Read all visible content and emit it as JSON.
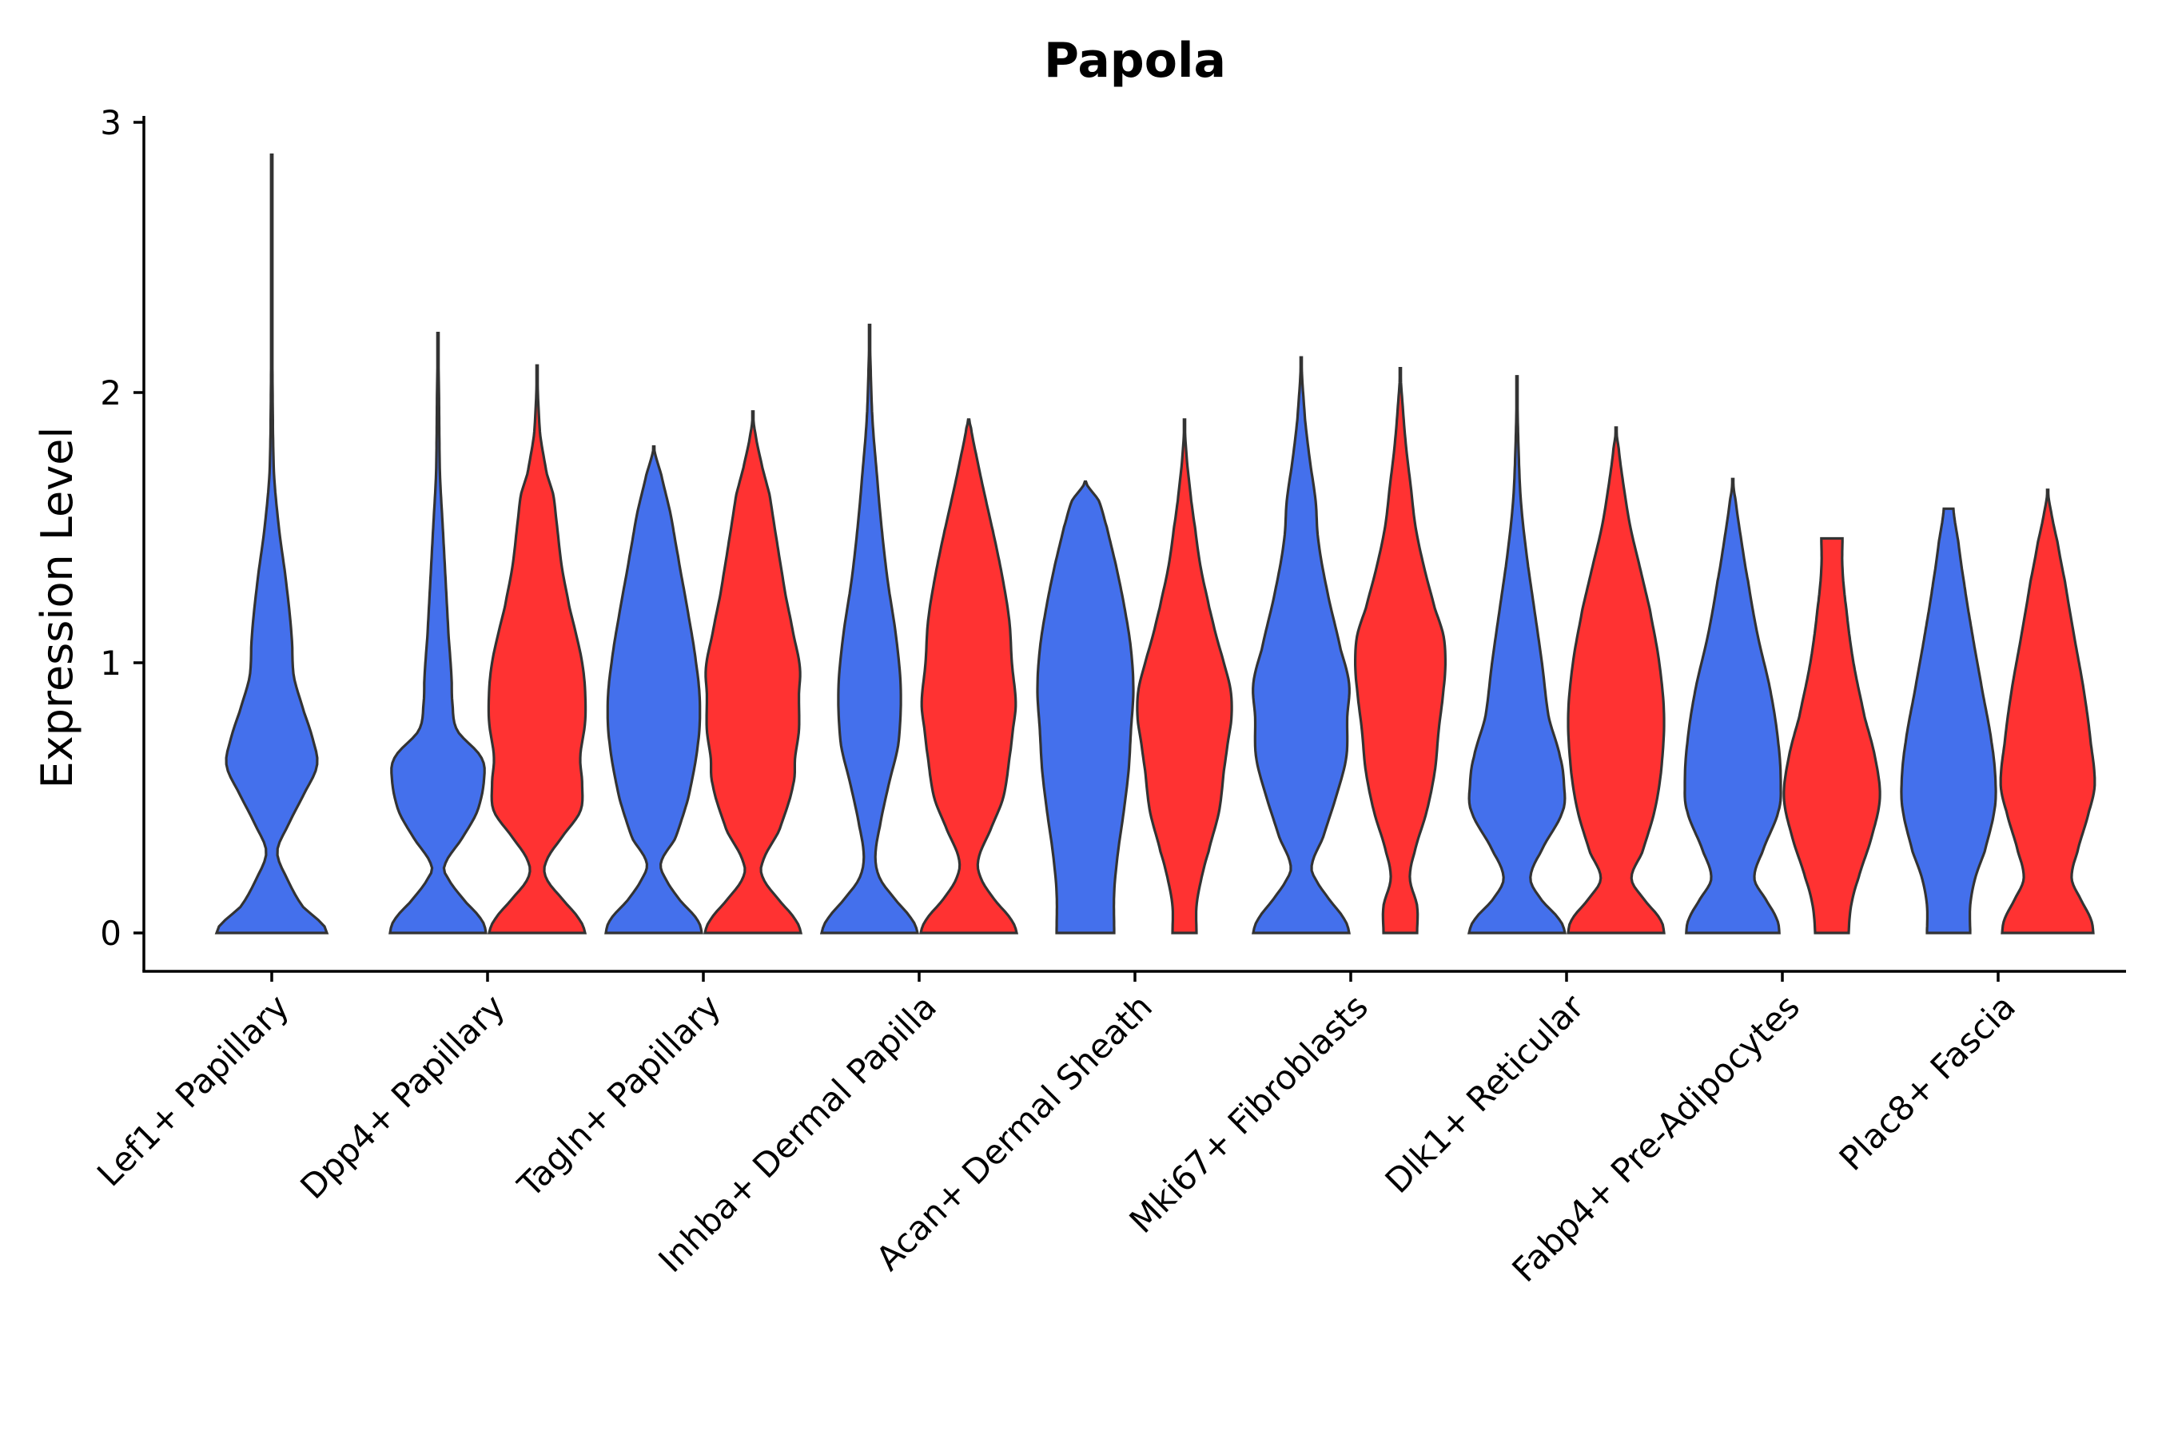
{
  "chart_data": {
    "type": "violin",
    "title": "Papola",
    "xlabel": "",
    "ylabel": "Expression Level",
    "ylim": [
      -0.15,
      3.05
    ],
    "yticks": [
      0,
      1,
      2,
      3
    ],
    "grid": false,
    "legend": "none",
    "colors": {
      "group_1": "#4470EC",
      "group_2": "#FF3232",
      "outline": "#333333"
    },
    "categories": [
      "Lef1+ Papillary",
      "Dpp4+ Papillary",
      "Tagln+ Papillary",
      "Inhba+ Dermal Papilla",
      "Acan+ Dermal Sheath",
      "Mki67+ Fibroblasts",
      "Dlk1+ Reticular",
      "Fabp4+ Pre-Adipocytes",
      "Plac8+ Fascia"
    ],
    "violins": [
      {
        "category": "Lef1+ Papillary",
        "group": 1,
        "ymax": 2.88,
        "profile": [
          [
            0,
            1
          ],
          [
            0.03,
            0.92
          ],
          [
            0.1,
            0.55
          ],
          [
            0.2,
            0.28
          ],
          [
            0.3,
            0.1
          ],
          [
            0.4,
            0.3
          ],
          [
            0.5,
            0.55
          ],
          [
            0.62,
            0.82
          ],
          [
            0.72,
            0.74
          ],
          [
            0.82,
            0.58
          ],
          [
            0.95,
            0.4
          ],
          [
            1.1,
            0.36
          ],
          [
            1.3,
            0.26
          ],
          [
            1.5,
            0.13
          ],
          [
            1.7,
            0.04
          ],
          [
            2.0,
            0.015
          ],
          [
            2.3,
            0.01
          ],
          [
            2.88,
            0.0
          ]
        ]
      },
      {
        "category": "Dpp4+ Papillary",
        "group": 1,
        "ymax": 2.22,
        "profile": [
          [
            0,
            1
          ],
          [
            0.05,
            0.9
          ],
          [
            0.12,
            0.55
          ],
          [
            0.2,
            0.22
          ],
          [
            0.25,
            0.14
          ],
          [
            0.35,
            0.5
          ],
          [
            0.45,
            0.82
          ],
          [
            0.57,
            0.96
          ],
          [
            0.65,
            0.9
          ],
          [
            0.75,
            0.4
          ],
          [
            0.85,
            0.3
          ],
          [
            0.95,
            0.28
          ],
          [
            1.1,
            0.22
          ],
          [
            1.3,
            0.16
          ],
          [
            1.5,
            0.1
          ],
          [
            1.7,
            0.04
          ],
          [
            2.0,
            0.02
          ],
          [
            2.22,
            0.0
          ]
        ]
      },
      {
        "category": "Dpp4+ Papillary",
        "group": 2,
        "ymax": 2.1,
        "profile": [
          [
            0,
            1
          ],
          [
            0.05,
            0.88
          ],
          [
            0.12,
            0.55
          ],
          [
            0.2,
            0.2
          ],
          [
            0.26,
            0.18
          ],
          [
            0.35,
            0.5
          ],
          [
            0.45,
            0.9
          ],
          [
            0.55,
            0.94
          ],
          [
            0.65,
            0.9
          ],
          [
            0.78,
            1.0
          ],
          [
            0.9,
            1.0
          ],
          [
            1.0,
            0.94
          ],
          [
            1.1,
            0.82
          ],
          [
            1.2,
            0.68
          ],
          [
            1.35,
            0.52
          ],
          [
            1.5,
            0.42
          ],
          [
            1.62,
            0.34
          ],
          [
            1.7,
            0.2
          ],
          [
            1.85,
            0.06
          ],
          [
            2.1,
            0.0
          ]
        ]
      },
      {
        "category": "Tagln+ Papillary",
        "group": 1,
        "ymax": 1.8,
        "profile": [
          [
            0,
            1
          ],
          [
            0.05,
            0.9
          ],
          [
            0.12,
            0.55
          ],
          [
            0.2,
            0.25
          ],
          [
            0.26,
            0.15
          ],
          [
            0.35,
            0.45
          ],
          [
            0.5,
            0.72
          ],
          [
            0.7,
            0.92
          ],
          [
            0.85,
            0.96
          ],
          [
            1.0,
            0.88
          ],
          [
            1.2,
            0.7
          ],
          [
            1.4,
            0.5
          ],
          [
            1.55,
            0.35
          ],
          [
            1.7,
            0.15
          ],
          [
            1.8,
            0.0
          ]
        ]
      },
      {
        "category": "Tagln+ Papillary",
        "group": 2,
        "ymax": 1.93,
        "profile": [
          [
            0,
            1
          ],
          [
            0.05,
            0.88
          ],
          [
            0.12,
            0.55
          ],
          [
            0.2,
            0.22
          ],
          [
            0.26,
            0.2
          ],
          [
            0.38,
            0.55
          ],
          [
            0.55,
            0.84
          ],
          [
            0.65,
            0.88
          ],
          [
            0.75,
            0.96
          ],
          [
            0.88,
            0.96
          ],
          [
            0.98,
            0.98
          ],
          [
            1.1,
            0.85
          ],
          [
            1.25,
            0.68
          ],
          [
            1.45,
            0.5
          ],
          [
            1.62,
            0.35
          ],
          [
            1.72,
            0.2
          ],
          [
            1.85,
            0.05
          ],
          [
            1.93,
            0.0
          ]
        ]
      },
      {
        "category": "Inhba+ Dermal Papilla",
        "group": 1,
        "ymax": 2.25,
        "profile": [
          [
            0,
            1
          ],
          [
            0.05,
            0.88
          ],
          [
            0.12,
            0.55
          ],
          [
            0.2,
            0.22
          ],
          [
            0.28,
            0.12
          ],
          [
            0.4,
            0.22
          ],
          [
            0.55,
            0.4
          ],
          [
            0.7,
            0.6
          ],
          [
            0.9,
            0.65
          ],
          [
            1.1,
            0.55
          ],
          [
            1.3,
            0.38
          ],
          [
            1.5,
            0.25
          ],
          [
            1.7,
            0.15
          ],
          [
            1.9,
            0.06
          ],
          [
            2.1,
            0.02
          ],
          [
            2.25,
            0.0
          ]
        ]
      },
      {
        "category": "Inhba+ Dermal Papilla",
        "group": 2,
        "ymax": 1.9,
        "profile": [
          [
            0,
            1
          ],
          [
            0.05,
            0.88
          ],
          [
            0.12,
            0.55
          ],
          [
            0.2,
            0.26
          ],
          [
            0.27,
            0.2
          ],
          [
            0.38,
            0.45
          ],
          [
            0.5,
            0.72
          ],
          [
            0.65,
            0.85
          ],
          [
            0.75,
            0.92
          ],
          [
            0.85,
            0.98
          ],
          [
            1.0,
            0.9
          ],
          [
            1.15,
            0.85
          ],
          [
            1.3,
            0.72
          ],
          [
            1.45,
            0.55
          ],
          [
            1.6,
            0.36
          ],
          [
            1.75,
            0.18
          ],
          [
            1.88,
            0.04
          ],
          [
            1.9,
            0.0
          ]
        ]
      },
      {
        "category": "Acan+ Dermal Sheath",
        "group": 1,
        "ymax": 1.67,
        "profile": [
          [
            0,
            0.6
          ],
          [
            0.15,
            0.6
          ],
          [
            0.3,
            0.68
          ],
          [
            0.45,
            0.8
          ],
          [
            0.6,
            0.9
          ],
          [
            0.75,
            0.95
          ],
          [
            0.9,
            1.0
          ],
          [
            1.05,
            0.95
          ],
          [
            1.2,
            0.82
          ],
          [
            1.35,
            0.65
          ],
          [
            1.5,
            0.45
          ],
          [
            1.6,
            0.28
          ],
          [
            1.67,
            0.0
          ]
        ]
      },
      {
        "category": "Acan+ Dermal Sheath",
        "group": 2,
        "ymax": 1.9,
        "profile": [
          [
            0,
            0.25
          ],
          [
            0.1,
            0.25
          ],
          [
            0.2,
            0.35
          ],
          [
            0.3,
            0.5
          ],
          [
            0.45,
            0.72
          ],
          [
            0.6,
            0.82
          ],
          [
            0.7,
            0.9
          ],
          [
            0.8,
            0.98
          ],
          [
            0.9,
            0.96
          ],
          [
            1.0,
            0.82
          ],
          [
            1.1,
            0.66
          ],
          [
            1.2,
            0.52
          ],
          [
            1.35,
            0.34
          ],
          [
            1.5,
            0.22
          ],
          [
            1.6,
            0.14
          ],
          [
            1.75,
            0.05
          ],
          [
            1.9,
            0.0
          ]
        ]
      },
      {
        "category": "Mki67+ Fibroblasts",
        "group": 1,
        "ymax": 2.13,
        "profile": [
          [
            0,
            1
          ],
          [
            0.05,
            0.9
          ],
          [
            0.12,
            0.6
          ],
          [
            0.2,
            0.3
          ],
          [
            0.25,
            0.22
          ],
          [
            0.35,
            0.45
          ],
          [
            0.5,
            0.72
          ],
          [
            0.65,
            0.94
          ],
          [
            0.8,
            0.96
          ],
          [
            0.92,
            1.0
          ],
          [
            1.05,
            0.82
          ],
          [
            1.25,
            0.56
          ],
          [
            1.45,
            0.36
          ],
          [
            1.6,
            0.3
          ],
          [
            1.75,
            0.18
          ],
          [
            1.9,
            0.08
          ],
          [
            2.13,
            0.0
          ]
        ]
      },
      {
        "category": "Mki67+ Fibroblasts",
        "group": 2,
        "ymax": 2.09,
        "profile": [
          [
            0,
            0.35
          ],
          [
            0.1,
            0.35
          ],
          [
            0.2,
            0.2
          ],
          [
            0.3,
            0.3
          ],
          [
            0.45,
            0.55
          ],
          [
            0.6,
            0.72
          ],
          [
            0.75,
            0.8
          ],
          [
            0.9,
            0.9
          ],
          [
            1.0,
            0.94
          ],
          [
            1.1,
            0.9
          ],
          [
            1.2,
            0.72
          ],
          [
            1.35,
            0.5
          ],
          [
            1.5,
            0.32
          ],
          [
            1.65,
            0.22
          ],
          [
            1.8,
            0.12
          ],
          [
            1.95,
            0.05
          ],
          [
            2.09,
            0.0
          ]
        ]
      },
      {
        "category": "Dlk1+ Reticular",
        "group": 1,
        "ymax": 2.06,
        "profile": [
          [
            0,
            1
          ],
          [
            0.05,
            0.88
          ],
          [
            0.12,
            0.52
          ],
          [
            0.2,
            0.28
          ],
          [
            0.3,
            0.5
          ],
          [
            0.45,
            0.95
          ],
          [
            0.55,
            0.98
          ],
          [
            0.65,
            0.9
          ],
          [
            0.8,
            0.66
          ],
          [
            1.0,
            0.52
          ],
          [
            1.2,
            0.36
          ],
          [
            1.4,
            0.2
          ],
          [
            1.6,
            0.08
          ],
          [
            1.8,
            0.03
          ],
          [
            2.06,
            0.0
          ]
        ]
      },
      {
        "category": "Dlk1+ Reticular",
        "group": 2,
        "ymax": 1.87,
        "profile": [
          [
            0,
            1
          ],
          [
            0.05,
            0.92
          ],
          [
            0.12,
            0.6
          ],
          [
            0.2,
            0.32
          ],
          [
            0.3,
            0.55
          ],
          [
            0.45,
            0.8
          ],
          [
            0.6,
            0.94
          ],
          [
            0.8,
            1.0
          ],
          [
            1.0,
            0.9
          ],
          [
            1.2,
            0.7
          ],
          [
            1.35,
            0.5
          ],
          [
            1.5,
            0.3
          ],
          [
            1.65,
            0.16
          ],
          [
            1.8,
            0.05
          ],
          [
            1.87,
            0.0
          ]
        ]
      },
      {
        "category": "Fabp4+ Pre-Adipocytes",
        "group": 1,
        "ymax": 1.68,
        "profile": [
          [
            0,
            0.97
          ],
          [
            0.05,
            0.92
          ],
          [
            0.12,
            0.7
          ],
          [
            0.2,
            0.45
          ],
          [
            0.3,
            0.62
          ],
          [
            0.45,
            0.95
          ],
          [
            0.55,
            1.0
          ],
          [
            0.7,
            0.95
          ],
          [
            0.9,
            0.78
          ],
          [
            1.1,
            0.52
          ],
          [
            1.3,
            0.32
          ],
          [
            1.45,
            0.18
          ],
          [
            1.6,
            0.06
          ],
          [
            1.68,
            0.0
          ]
        ]
      },
      {
        "category": "Fabp4+ Pre-Adipocytes",
        "group": 2,
        "ymax": 1.46,
        "profile": [
          [
            0,
            0.35
          ],
          [
            0.1,
            0.4
          ],
          [
            0.2,
            0.55
          ],
          [
            0.35,
            0.82
          ],
          [
            0.5,
            1.0
          ],
          [
            0.65,
            0.9
          ],
          [
            0.8,
            0.68
          ],
          [
            1.0,
            0.45
          ],
          [
            1.2,
            0.3
          ],
          [
            1.35,
            0.22
          ],
          [
            1.46,
            0.22
          ]
        ]
      },
      {
        "category": "Plac8+ Fascia",
        "group": 1,
        "ymax": 1.57,
        "profile": [
          [
            0,
            0.45
          ],
          [
            0.1,
            0.45
          ],
          [
            0.2,
            0.55
          ],
          [
            0.3,
            0.75
          ],
          [
            0.45,
            0.95
          ],
          [
            0.55,
            0.98
          ],
          [
            0.7,
            0.9
          ],
          [
            0.9,
            0.7
          ],
          [
            1.1,
            0.5
          ],
          [
            1.3,
            0.32
          ],
          [
            1.45,
            0.2
          ],
          [
            1.57,
            0.1
          ]
        ]
      },
      {
        "category": "Plac8+ Fascia",
        "group": 2,
        "ymax": 1.64,
        "profile": [
          [
            0,
            0.95
          ],
          [
            0.05,
            0.9
          ],
          [
            0.12,
            0.7
          ],
          [
            0.2,
            0.5
          ],
          [
            0.3,
            0.62
          ],
          [
            0.45,
            0.86
          ],
          [
            0.55,
            0.98
          ],
          [
            0.7,
            0.9
          ],
          [
            0.9,
            0.75
          ],
          [
            1.1,
            0.55
          ],
          [
            1.3,
            0.36
          ],
          [
            1.45,
            0.2
          ],
          [
            1.55,
            0.08
          ],
          [
            1.64,
            0.0
          ]
        ]
      }
    ]
  }
}
